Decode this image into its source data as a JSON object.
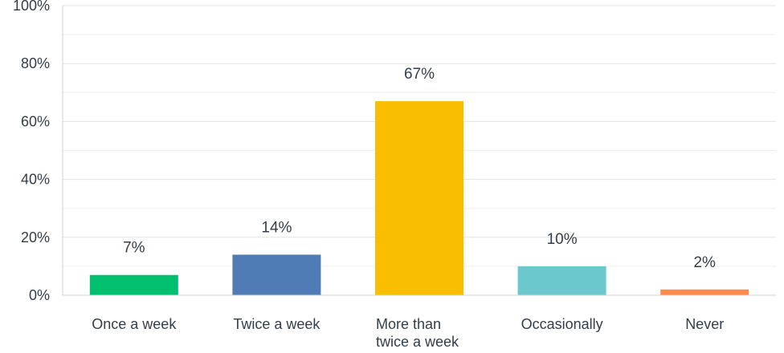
{
  "chart_data": {
    "type": "bar",
    "categories": [
      "Once a week",
      "Twice a week",
      "More than twice a week",
      "Occasionally",
      "Never"
    ],
    "category_lines": [
      [
        "Once a week"
      ],
      [
        "Twice a week"
      ],
      [
        "More than",
        "twice a week"
      ],
      [
        "Occasionally"
      ],
      [
        "Never"
      ]
    ],
    "values": [
      7,
      14,
      67,
      10,
      2
    ],
    "value_labels": [
      "7%",
      "14%",
      "67%",
      "10%",
      "2%"
    ],
    "colors": [
      "#00bf6f",
      "#507cb6",
      "#f9be00",
      "#6bc8cd",
      "#ff8b4f"
    ],
    "ylim": [
      0,
      100
    ],
    "yticks": [
      0,
      20,
      40,
      60,
      80,
      100
    ],
    "ytick_labels": [
      "0%",
      "20%",
      "40%",
      "60%",
      "80%",
      "100%"
    ],
    "minor_gridlines": [
      10,
      30,
      50,
      70,
      90
    ],
    "grid": true,
    "title": "",
    "xlabel": "",
    "ylabel": ""
  }
}
